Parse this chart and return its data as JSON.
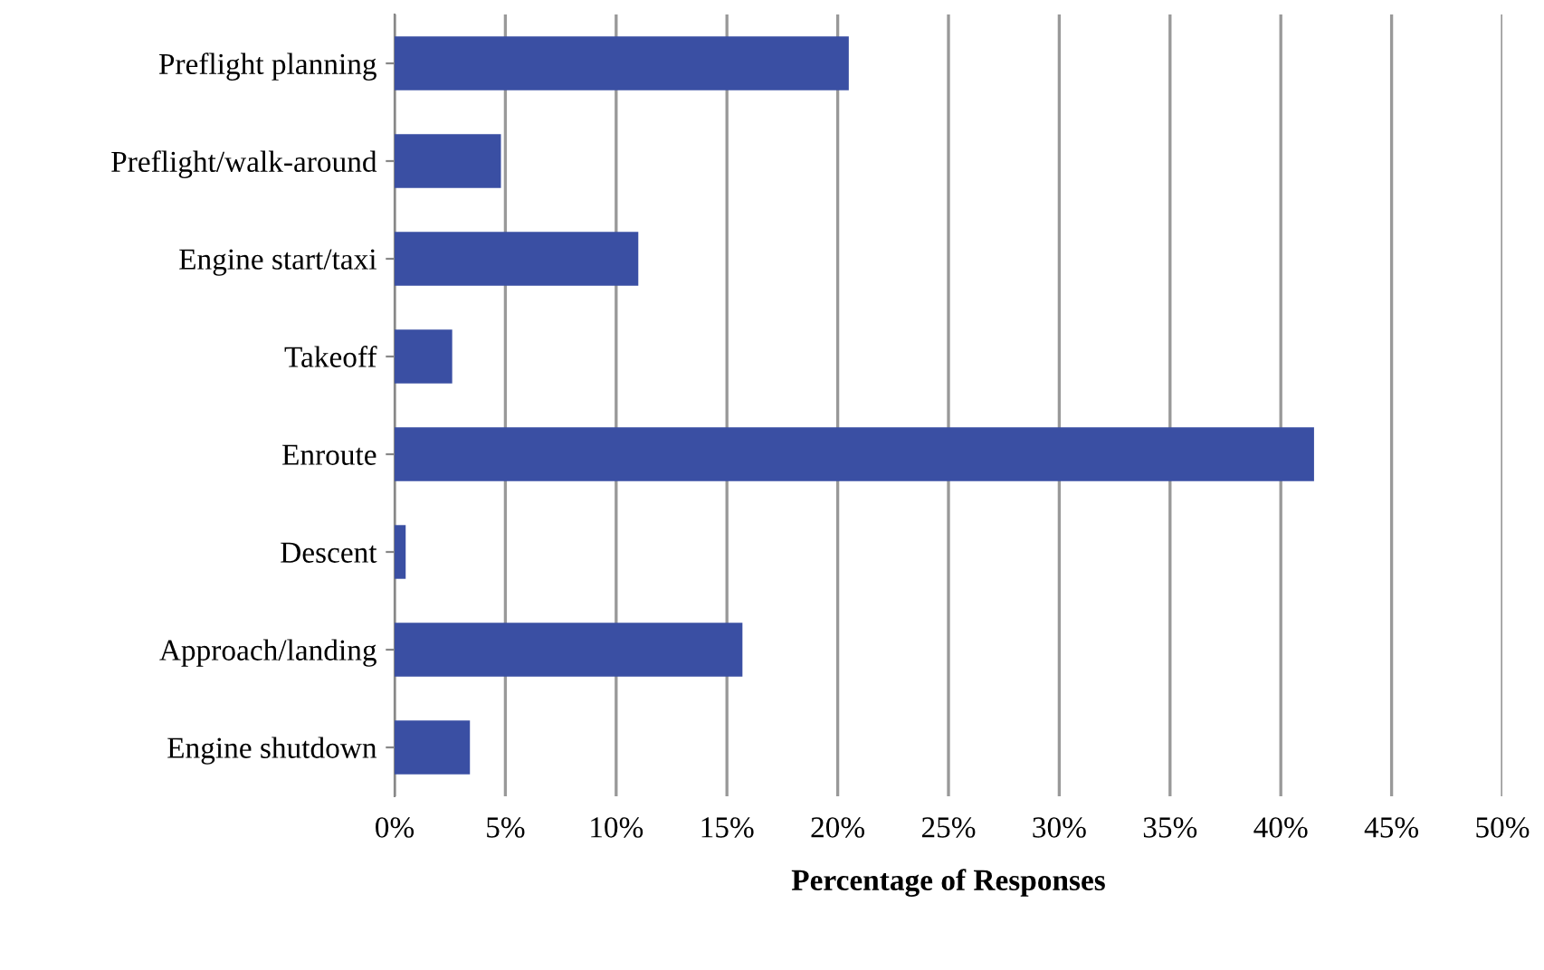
{
  "chart_data": {
    "type": "bar",
    "orientation": "horizontal",
    "xlabel": "Percentage of Responses",
    "categories": [
      "Preflight planning",
      "Preflight/walk-around",
      "Engine start/taxi",
      "Takeoff",
      "Enroute",
      "Descent",
      "Approach/landing",
      "Engine shutdown"
    ],
    "values": [
      20.5,
      4.8,
      11.0,
      2.6,
      41.5,
      0.5,
      15.7,
      3.4
    ],
    "color": "#3a4fa3",
    "xlim": [
      0,
      50
    ],
    "xticks": [
      {
        "value": 0,
        "label": "0%"
      },
      {
        "value": 5,
        "label": "5%"
      },
      {
        "value": 10,
        "label": "10%"
      },
      {
        "value": 15,
        "label": "15%"
      },
      {
        "value": 20,
        "label": "20%"
      },
      {
        "value": 25,
        "label": "25%"
      },
      {
        "value": 30,
        "label": "30%"
      },
      {
        "value": 35,
        "label": "35%"
      },
      {
        "value": 40,
        "label": "40%"
      },
      {
        "value": 45,
        "label": "45%"
      },
      {
        "value": 50,
        "label": "50%"
      }
    ],
    "grid": "x"
  }
}
